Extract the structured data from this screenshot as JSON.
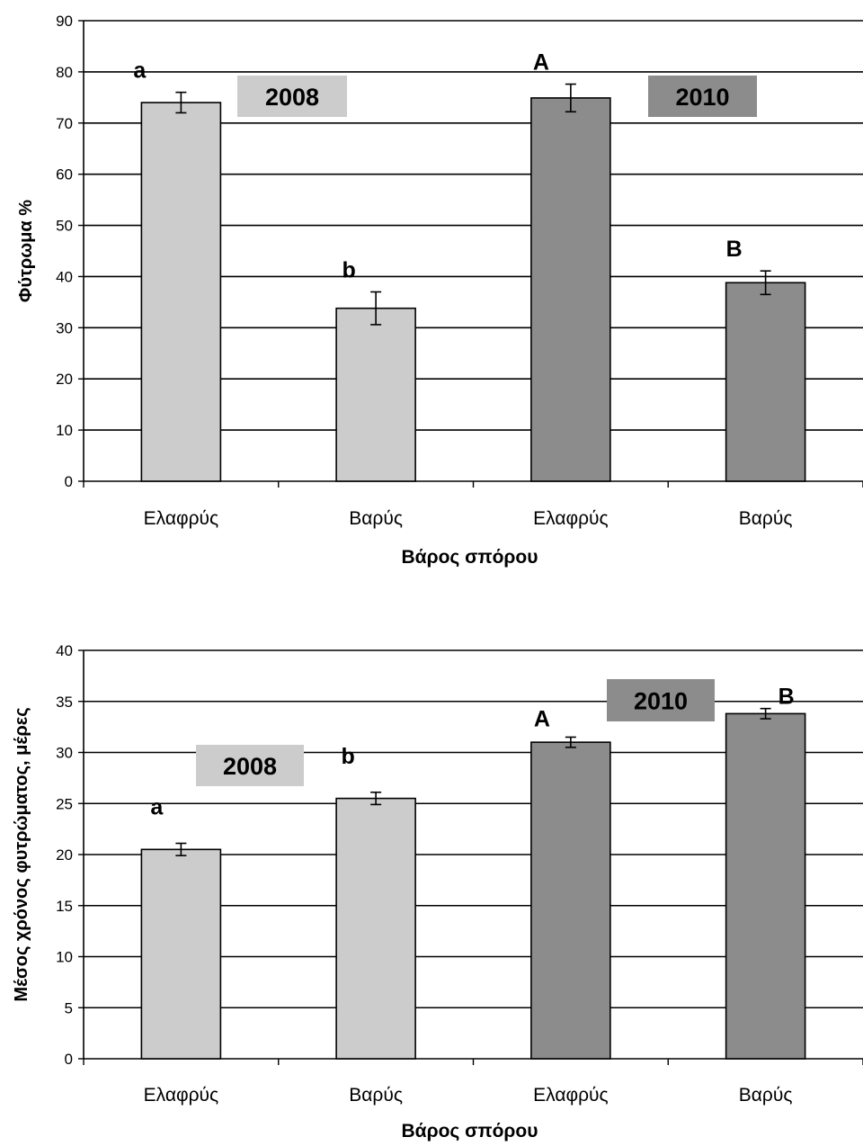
{
  "colors": {
    "bar_2008": "#cccccc",
    "bar_2010": "#8c8c8c",
    "box_2008": "#cccccc",
    "box_2010": "#8c8c8c",
    "grid": "#000000"
  },
  "chart_data": [
    {
      "type": "bar",
      "title": "",
      "ylabel": "Φύτρωμα %",
      "xlabel": "Βάρος σπόρου",
      "ylim": [
        0,
        90
      ],
      "yticks": [
        0,
        10,
        20,
        30,
        40,
        50,
        60,
        70,
        80,
        90
      ],
      "grid": true,
      "categories": [
        "Ελαφρύς",
        "Βαρύς",
        "Ελαφρύς",
        "Βαρύς"
      ],
      "values": [
        74,
        33.8,
        74.9,
        38.8
      ],
      "errors": [
        2,
        3.2,
        2.7,
        2.3
      ],
      "groups": [
        "2008",
        "2008",
        "2010",
        "2010"
      ],
      "significance_labels": [
        "a",
        "b",
        "A",
        "B"
      ],
      "group_labels": [
        "2008",
        "2010"
      ]
    },
    {
      "type": "bar",
      "title": "",
      "ylabel": "Μέσος χρόνος φυτρώματος, μέρες",
      "xlabel": "Βάρος σπόρου",
      "ylim": [
        0,
        40
      ],
      "yticks": [
        0,
        5,
        10,
        15,
        20,
        25,
        30,
        35,
        40
      ],
      "grid": true,
      "categories": [
        "Ελαφρύς",
        "Βαρύς",
        "Ελαφρύς",
        "Βαρύς"
      ],
      "values": [
        20.5,
        25.5,
        31,
        33.8
      ],
      "errors": [
        0.6,
        0.6,
        0.5,
        0.5
      ],
      "groups": [
        "2008",
        "2008",
        "2010",
        "2010"
      ],
      "significance_labels": [
        "a",
        "b",
        "A",
        "B"
      ],
      "group_labels": [
        "2008",
        "2010"
      ]
    }
  ]
}
